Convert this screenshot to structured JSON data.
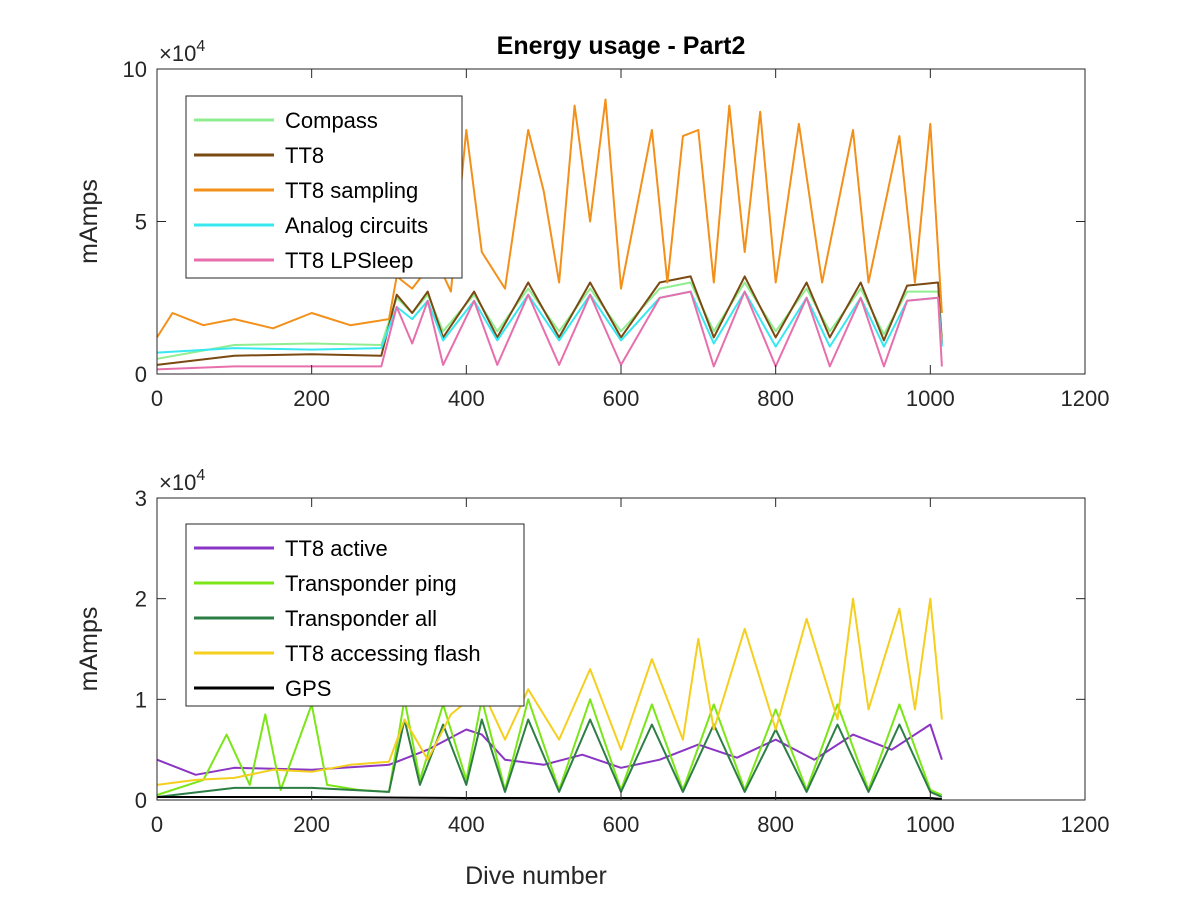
{
  "title": "Energy usage - Part2",
  "chart_data": [
    {
      "type": "line",
      "xlabel": "",
      "ylabel": "mAmps",
      "xlim": [
        0,
        1200
      ],
      "ylim": [
        0,
        100000
      ],
      "xticks": [
        0,
        200,
        400,
        600,
        800,
        1000,
        1200
      ],
      "yticks": [
        0,
        5,
        10
      ],
      "y_exponent_base": "×10",
      "y_exponent_power": "4",
      "legend_position": "top-left",
      "grid": false,
      "series": [
        {
          "name": "Compass",
          "color": "#90ee90",
          "points": [
            [
              0,
              5000
            ],
            [
              100,
              9500
            ],
            [
              200,
              10000
            ],
            [
              290,
              9500
            ],
            [
              310,
              25000
            ],
            [
              330,
              20000
            ],
            [
              350,
              26000
            ],
            [
              370,
              14000
            ],
            [
              410,
              26000
            ],
            [
              440,
              14000
            ],
            [
              480,
              28000
            ],
            [
              520,
              14000
            ],
            [
              560,
              28000
            ],
            [
              600,
              14000
            ],
            [
              650,
              28000
            ],
            [
              690,
              30000
            ],
            [
              720,
              14000
            ],
            [
              760,
              30000
            ],
            [
              800,
              14000
            ],
            [
              840,
              28000
            ],
            [
              870,
              14000
            ],
            [
              910,
              28000
            ],
            [
              940,
              13000
            ],
            [
              970,
              27000
            ],
            [
              1010,
              27000
            ],
            [
              1015,
              12000
            ]
          ]
        },
        {
          "name": "TT8",
          "color": "#7a4a12",
          "points": [
            [
              0,
              3000
            ],
            [
              100,
              6000
            ],
            [
              200,
              6500
            ],
            [
              290,
              6000
            ],
            [
              310,
              26000
            ],
            [
              330,
              20000
            ],
            [
              350,
              27000
            ],
            [
              370,
              12000
            ],
            [
              410,
              27000
            ],
            [
              440,
              12000
            ],
            [
              480,
              30000
            ],
            [
              520,
              12000
            ],
            [
              560,
              30000
            ],
            [
              600,
              12000
            ],
            [
              650,
              30000
            ],
            [
              690,
              32000
            ],
            [
              720,
              12000
            ],
            [
              760,
              32000
            ],
            [
              800,
              12000
            ],
            [
              840,
              30000
            ],
            [
              870,
              12000
            ],
            [
              910,
              30000
            ],
            [
              940,
              11000
            ],
            [
              970,
              29000
            ],
            [
              1010,
              30000
            ],
            [
              1015,
              10000
            ]
          ]
        },
        {
          "name": "TT8 sampling",
          "color": "#f39019",
          "points": [
            [
              0,
              12000
            ],
            [
              20,
              20000
            ],
            [
              60,
              16000
            ],
            [
              100,
              18000
            ],
            [
              150,
              15000
            ],
            [
              200,
              20000
            ],
            [
              250,
              16000
            ],
            [
              300,
              18000
            ],
            [
              310,
              32000
            ],
            [
              330,
              28000
            ],
            [
              360,
              38000
            ],
            [
              380,
              27000
            ],
            [
              400,
              80000
            ],
            [
              420,
              40000
            ],
            [
              450,
              28000
            ],
            [
              480,
              80000
            ],
            [
              500,
              60000
            ],
            [
              520,
              30000
            ],
            [
              540,
              88000
            ],
            [
              560,
              50000
            ],
            [
              580,
              90000
            ],
            [
              600,
              28000
            ],
            [
              640,
              80000
            ],
            [
              660,
              30000
            ],
            [
              680,
              78000
            ],
            [
              700,
              80000
            ],
            [
              720,
              30000
            ],
            [
              740,
              88000
            ],
            [
              760,
              40000
            ],
            [
              780,
              86000
            ],
            [
              800,
              30000
            ],
            [
              830,
              82000
            ],
            [
              860,
              30000
            ],
            [
              900,
              80000
            ],
            [
              920,
              30000
            ],
            [
              960,
              78000
            ],
            [
              980,
              30000
            ],
            [
              1000,
              82000
            ],
            [
              1015,
              20000
            ]
          ]
        },
        {
          "name": "Analog circuits",
          "color": "#37e8f0",
          "points": [
            [
              0,
              7000
            ],
            [
              100,
              8500
            ],
            [
              200,
              8000
            ],
            [
              290,
              8500
            ],
            [
              310,
              22000
            ],
            [
              330,
              18000
            ],
            [
              350,
              24000
            ],
            [
              370,
              11000
            ],
            [
              410,
              24000
            ],
            [
              440,
              11000
            ],
            [
              480,
              26000
            ],
            [
              520,
              11000
            ],
            [
              560,
              26000
            ],
            [
              600,
              11000
            ],
            [
              650,
              25000
            ],
            [
              690,
              27000
            ],
            [
              720,
              10000
            ],
            [
              760,
              27000
            ],
            [
              800,
              9000
            ],
            [
              840,
              25000
            ],
            [
              870,
              9000
            ],
            [
              910,
              25000
            ],
            [
              940,
              9000
            ],
            [
              970,
              24000
            ],
            [
              1010,
              25000
            ],
            [
              1015,
              9000
            ]
          ]
        },
        {
          "name": "TT8 LPSleep",
          "color": "#e76fad",
          "points": [
            [
              0,
              1500
            ],
            [
              100,
              2500
            ],
            [
              200,
              2500
            ],
            [
              290,
              2500
            ],
            [
              310,
              22000
            ],
            [
              330,
              10000
            ],
            [
              350,
              24000
            ],
            [
              370,
              3000
            ],
            [
              410,
              24000
            ],
            [
              440,
              3000
            ],
            [
              480,
              26000
            ],
            [
              520,
              3000
            ],
            [
              560,
              26000
            ],
            [
              600,
              3000
            ],
            [
              650,
              25000
            ],
            [
              690,
              27000
            ],
            [
              720,
              2500
            ],
            [
              760,
              27000
            ],
            [
              800,
              2500
            ],
            [
              840,
              25000
            ],
            [
              870,
              2500
            ],
            [
              910,
              25000
            ],
            [
              940,
              2500
            ],
            [
              970,
              24000
            ],
            [
              1010,
              25000
            ],
            [
              1015,
              2500
            ]
          ]
        }
      ]
    },
    {
      "type": "line",
      "xlabel": "Dive number",
      "ylabel": "mAmps",
      "xlim": [
        0,
        1200
      ],
      "ylim": [
        0,
        30000
      ],
      "xticks": [
        0,
        200,
        400,
        600,
        800,
        1000,
        1200
      ],
      "yticks": [
        0,
        1,
        2,
        3
      ],
      "y_exponent_base": "×10",
      "y_exponent_power": "4",
      "legend_position": "top-left",
      "grid": false,
      "series": [
        {
          "name": "TT8 active",
          "color": "#8a35c4",
          "points": [
            [
              0,
              4000
            ],
            [
              50,
              2500
            ],
            [
              100,
              3200
            ],
            [
              200,
              3000
            ],
            [
              300,
              3500
            ],
            [
              350,
              5000
            ],
            [
              400,
              7000
            ],
            [
              420,
              6500
            ],
            [
              450,
              4000
            ],
            [
              500,
              3500
            ],
            [
              550,
              4500
            ],
            [
              600,
              3200
            ],
            [
              650,
              4000
            ],
            [
              700,
              5500
            ],
            [
              750,
              4200
            ],
            [
              800,
              6000
            ],
            [
              850,
              4000
            ],
            [
              900,
              6500
            ],
            [
              950,
              5000
            ],
            [
              1000,
              7500
            ],
            [
              1015,
              4000
            ]
          ]
        },
        {
          "name": "Transponder ping",
          "color": "#7be617",
          "points": [
            [
              0,
              500
            ],
            [
              60,
              2000
            ],
            [
              90,
              6500
            ],
            [
              120,
              1500
            ],
            [
              140,
              8500
            ],
            [
              160,
              1000
            ],
            [
              200,
              9500
            ],
            [
              220,
              1500
            ],
            [
              260,
              1000
            ],
            [
              300,
              800
            ],
            [
              320,
              10000
            ],
            [
              340,
              2000
            ],
            [
              370,
              9500
            ],
            [
              400,
              2000
            ],
            [
              420,
              10000
            ],
            [
              450,
              1000
            ],
            [
              480,
              10000
            ],
            [
              520,
              1000
            ],
            [
              560,
              10000
            ],
            [
              600,
              1000
            ],
            [
              640,
              9500
            ],
            [
              680,
              1000
            ],
            [
              720,
              9500
            ],
            [
              760,
              1000
            ],
            [
              800,
              9000
            ],
            [
              840,
              1000
            ],
            [
              880,
              9500
            ],
            [
              920,
              1000
            ],
            [
              960,
              9500
            ],
            [
              1000,
              1000
            ],
            [
              1015,
              500
            ]
          ]
        },
        {
          "name": "Transponder all",
          "color": "#2c7e45",
          "points": [
            [
              0,
              300
            ],
            [
              100,
              1200
            ],
            [
              200,
              1200
            ],
            [
              300,
              800
            ],
            [
              320,
              8000
            ],
            [
              340,
              1500
            ],
            [
              370,
              7500
            ],
            [
              400,
              1500
            ],
            [
              420,
              8000
            ],
            [
              450,
              800
            ],
            [
              480,
              8000
            ],
            [
              520,
              800
            ],
            [
              560,
              8000
            ],
            [
              600,
              800
            ],
            [
              640,
              7500
            ],
            [
              680,
              800
            ],
            [
              720,
              7500
            ],
            [
              760,
              800
            ],
            [
              800,
              7000
            ],
            [
              840,
              800
            ],
            [
              880,
              7500
            ],
            [
              920,
              800
            ],
            [
              960,
              7500
            ],
            [
              1000,
              800
            ],
            [
              1015,
              300
            ]
          ]
        },
        {
          "name": "TT8 accessing flash",
          "color": "#f5cf1e",
          "points": [
            [
              0,
              1500
            ],
            [
              50,
              2000
            ],
            [
              100,
              2200
            ],
            [
              150,
              3000
            ],
            [
              200,
              2800
            ],
            [
              250,
              3500
            ],
            [
              300,
              3800
            ],
            [
              320,
              8000
            ],
            [
              350,
              4000
            ],
            [
              380,
              8500
            ],
            [
              420,
              11000
            ],
            [
              450,
              6000
            ],
            [
              480,
              11000
            ],
            [
              520,
              6000
            ],
            [
              560,
              13000
            ],
            [
              600,
              5000
            ],
            [
              640,
              14000
            ],
            [
              680,
              6000
            ],
            [
              700,
              16000
            ],
            [
              720,
              7000
            ],
            [
              760,
              17000
            ],
            [
              800,
              7000
            ],
            [
              840,
              18000
            ],
            [
              880,
              8000
            ],
            [
              900,
              20000
            ],
            [
              920,
              9000
            ],
            [
              960,
              19000
            ],
            [
              980,
              9000
            ],
            [
              1000,
              20000
            ],
            [
              1015,
              8000
            ]
          ]
        },
        {
          "name": "GPS",
          "color": "#000000",
          "points": [
            [
              0,
              300
            ],
            [
              200,
              300
            ],
            [
              400,
              200
            ],
            [
              600,
              200
            ],
            [
              800,
              200
            ],
            [
              1000,
              200
            ],
            [
              1015,
              100
            ]
          ]
        }
      ]
    }
  ]
}
